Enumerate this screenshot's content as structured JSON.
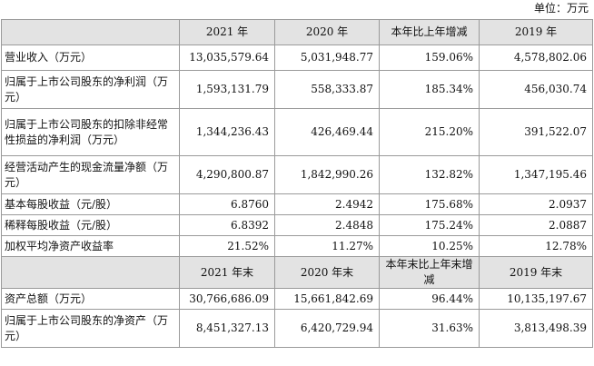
{
  "unit_label": "单位：万元",
  "header1": [
    "",
    "2021 年",
    "2020 年",
    "本年比上年增减",
    "2019 年"
  ],
  "rows1": [
    {
      "label": "营业收入（万元）",
      "values": [
        "13,035,579.64",
        "5,031,948.77",
        "159.06%",
        "4,578,802.06"
      ]
    },
    {
      "label": "归属于上市公司股东的净利润（万元）",
      "values": [
        "1,593,131.79",
        "558,333.87",
        "185.34%",
        "456,030.74"
      ]
    },
    {
      "label": "归属于上市公司股东的扣除非经常性损益的净利润（万元）",
      "values": [
        "1,344,236.43",
        "426,469.44",
        "215.20%",
        "391,522.07"
      ]
    },
    {
      "label": "经营活动产生的现金流量净额（万元）",
      "values": [
        "4,290,800.87",
        "1,842,990.26",
        "132.82%",
        "1,347,195.46"
      ]
    },
    {
      "label": "基本每股收益（元/股）",
      "values": [
        "6.8760",
        "2.4942",
        "175.68%",
        "2.0937"
      ]
    },
    {
      "label": "稀释每股收益（元/股）",
      "values": [
        "6.8392",
        "2.4848",
        "175.24%",
        "2.0887"
      ]
    },
    {
      "label": "加权平均净资产收益率",
      "values": [
        "21.52%",
        "11.27%",
        "10.25%",
        "12.78%"
      ]
    }
  ],
  "header2": [
    "",
    "2021 年末",
    "2020 年末",
    "本年末比上年末增减",
    "2019 年末"
  ],
  "rows2": [
    {
      "label": "资产总额（万元）",
      "values": [
        "30,766,686.09",
        "15,661,842.69",
        "96.44%",
        "10,135,197.67"
      ]
    },
    {
      "label": "归属于上市公司股东的净资产（万元）",
      "values": [
        "8,451,327.13",
        "6,420,729.94",
        "31.63%",
        "3,813,498.39"
      ]
    }
  ]
}
